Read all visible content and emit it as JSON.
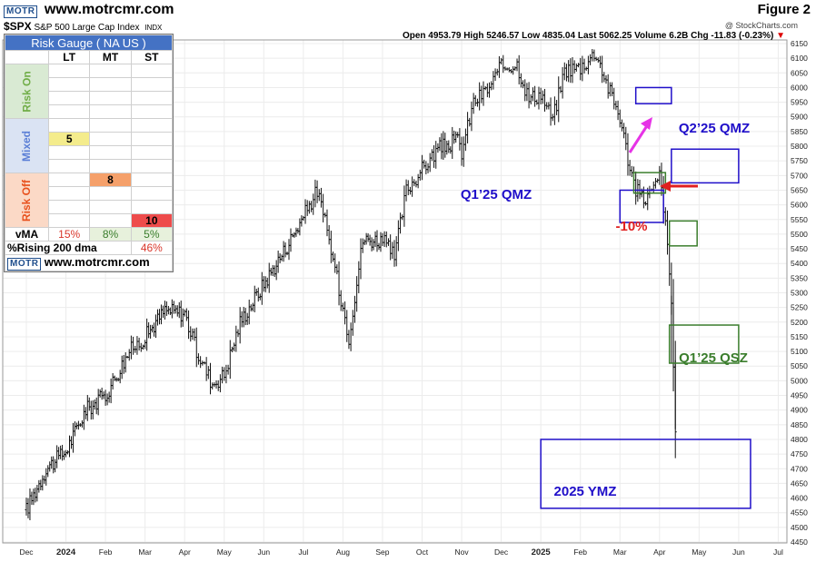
{
  "header": {
    "logo_text": "MOTR",
    "site": "www.motrcmr.com",
    "figure_label": "Figure 2",
    "symbol": "$SPX",
    "description": "S&P 500 Large Cap Index",
    "exchange": "INDX",
    "credit": "@ StockCharts.com",
    "ohlc": "Open 4953.79  High 5246.57  Low 4835.04  Last 5062.25  Volume 6.2B  Chg -11.83 (-0.23%)",
    "chg_marker": "▼"
  },
  "gauge": {
    "title": "Risk Gauge ( NA US )",
    "columns": [
      "LT",
      "MT",
      "ST"
    ],
    "zones": [
      {
        "label": "Risk On",
        "color": "#70ad47",
        "bg": "#d9ead3"
      },
      {
        "label": "Mixed",
        "color": "#5b7fd6",
        "bg": "#dae3f3"
      },
      {
        "label": "Risk Off",
        "color": "#e8501c",
        "bg": "#fbd9c6"
      }
    ],
    "values": {
      "lt": "5",
      "mt": "8",
      "st": "10"
    },
    "vma": {
      "label": "vMA",
      "lt": "15%",
      "mt": "8%",
      "st": "5%"
    },
    "rising": {
      "label": "%Rising 200 dma",
      "value": "46%"
    },
    "footer_logo": "MOTR",
    "footer_site": "www.motrcmr.com"
  },
  "chart_data": {
    "type": "ohlc",
    "y_axis": {
      "min": 4450,
      "max": 6150,
      "step": 50,
      "side": "right"
    },
    "x_axis": {
      "labels": [
        "Dec",
        "2024",
        "Feb",
        "Mar",
        "Apr",
        "May",
        "Jun",
        "Jul",
        "Aug",
        "Sep",
        "Oct",
        "Nov",
        "Dec",
        "2025",
        "Feb",
        "Mar",
        "Apr",
        "May",
        "Jun",
        "Jul"
      ],
      "positions": [
        0,
        1,
        2,
        3,
        4,
        5,
        6,
        7,
        8,
        9,
        10,
        11,
        12,
        13,
        14,
        15,
        16,
        17,
        18,
        19
      ]
    },
    "series_path": [
      [
        0,
        4560
      ],
      [
        0.5,
        4700
      ],
      [
        1,
        4760
      ],
      [
        1.5,
        4900
      ],
      [
        2,
        4950
      ],
      [
        2.6,
        5100
      ],
      [
        3,
        5150
      ],
      [
        3.5,
        5240
      ],
      [
        4,
        5230
      ],
      [
        4.3,
        5100
      ],
      [
        4.7,
        4990
      ],
      [
        5,
        5020
      ],
      [
        5.4,
        5200
      ],
      [
        6,
        5330
      ],
      [
        6.5,
        5440
      ],
      [
        7,
        5560
      ],
      [
        7.35,
        5650
      ],
      [
        7.6,
        5510
      ],
      [
        8,
        5250
      ],
      [
        8.15,
        5150
      ],
      [
        8.5,
        5480
      ],
      [
        9,
        5480
      ],
      [
        9.3,
        5420
      ],
      [
        9.6,
        5650
      ],
      [
        10,
        5720
      ],
      [
        10.4,
        5790
      ],
      [
        10.9,
        5820
      ],
      [
        11,
        5780
      ],
      [
        11.3,
        5950
      ],
      [
        11.7,
        6000
      ],
      [
        12,
        6070
      ],
      [
        12.4,
        6080
      ],
      [
        12.7,
        5960
      ],
      [
        13,
        5980
      ],
      [
        13.3,
        5890
      ],
      [
        13.6,
        6060
      ],
      [
        14,
        6070
      ],
      [
        14.4,
        6120
      ],
      [
        14.7,
        6000
      ],
      [
        15,
        5900
      ],
      [
        15.2,
        5760
      ],
      [
        15.4,
        5650
      ],
      [
        15.6,
        5620
      ],
      [
        15.85,
        5650
      ],
      [
        16,
        5700
      ],
      [
        16.1,
        5600
      ],
      [
        16.2,
        5450
      ],
      [
        16.3,
        5270
      ],
      [
        16.4,
        4830
      ]
    ],
    "zones": [
      {
        "name": "Q1’25 QMZ",
        "type": "range",
        "color": "#1f0ec9",
        "x1": 15.0,
        "x2": 16.1,
        "ymin": 5540,
        "ymax": 5650
      },
      {
        "name": "Q2’25 QMZ",
        "type": "range",
        "color": "#1f0ec9",
        "x1": 16.3,
        "x2": 18.0,
        "ymin": 5675,
        "ymax": 5790
      },
      {
        "name": "Q1’25 QSZ",
        "type": "range",
        "color": "#3a7d2c",
        "x1": 16.25,
        "x2": 18.0,
        "ymin": 5060,
        "ymax": 5190
      },
      {
        "name": "2025 YMZ",
        "type": "range",
        "color": "#1f0ec9",
        "x1": 13.0,
        "x2": 18.3,
        "ymin": 4565,
        "ymax": 4800
      },
      {
        "name": "",
        "type": "range",
        "color": "#1f0ec9",
        "x1": 15.4,
        "x2": 16.3,
        "ymin": 5945,
        "ymax": 6000
      },
      {
        "name": "",
        "type": "range",
        "color": "#3a7d2c",
        "x1": 15.35,
        "x2": 16.15,
        "ymin": 5640,
        "ymax": 5710
      },
      {
        "name": "",
        "type": "range",
        "color": "#3a7d2c",
        "x1": 16.25,
        "x2": 16.95,
        "ymin": 5460,
        "ymax": 5545
      }
    ],
    "annotations": [
      {
        "text": "-10%",
        "color": "#e02020",
        "x": 15.5,
        "y": 5490
      }
    ]
  }
}
